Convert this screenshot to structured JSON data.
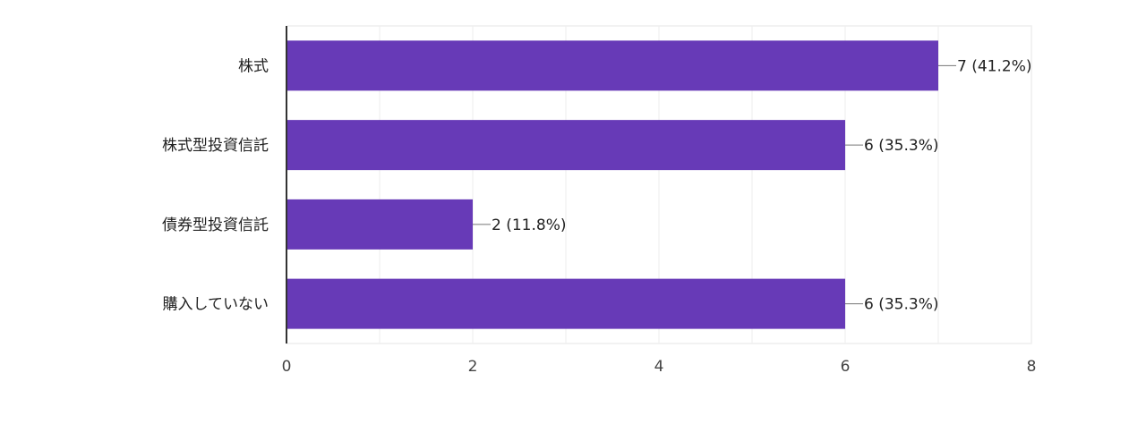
{
  "colors": {
    "bar": "#673ab7",
    "grid": "#eeeeee",
    "axis": "#333333",
    "text": "#212121",
    "tick_text": "#444444",
    "leader": "#757575"
  },
  "chart_data": {
    "type": "bar",
    "orientation": "horizontal",
    "categories": [
      "株式",
      "株式型投資信託",
      "債券型投資信託",
      "購入していない"
    ],
    "values": [
      7,
      6,
      2,
      6
    ],
    "value_labels": [
      "7 (41.2%)",
      "6 (35.3%)",
      "2 (11.8%)",
      "6 (35.3%)"
    ],
    "xlim": [
      0,
      8
    ],
    "xticks": [
      0,
      2,
      4,
      6,
      8
    ],
    "xtick_labels": [
      "0",
      "2",
      "4",
      "6",
      "8"
    ],
    "grid": true,
    "legend": "none"
  }
}
